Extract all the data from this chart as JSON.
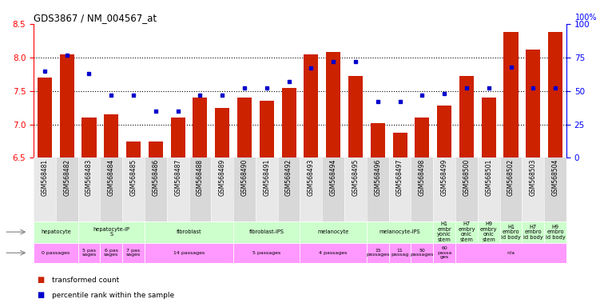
{
  "title": "GDS3867 / NM_004567_at",
  "gsm_labels": [
    "GSM568481",
    "GSM568482",
    "GSM568483",
    "GSM568484",
    "GSM568485",
    "GSM568486",
    "GSM568487",
    "GSM568488",
    "GSM568489",
    "GSM568490",
    "GSM568491",
    "GSM568492",
    "GSM568493",
    "GSM568494",
    "GSM568495",
    "GSM568496",
    "GSM568497",
    "GSM568498",
    "GSM568499",
    "GSM568500",
    "GSM568501",
    "GSM568502",
    "GSM568503",
    "GSM568504"
  ],
  "bar_values": [
    7.7,
    8.05,
    7.1,
    7.15,
    6.75,
    6.75,
    7.1,
    7.4,
    7.25,
    7.4,
    7.35,
    7.55,
    8.05,
    8.08,
    7.72,
    7.02,
    6.88,
    7.1,
    7.28,
    7.72,
    7.4,
    8.38,
    8.12,
    8.38
  ],
  "percentile_values": [
    65.0,
    77.0,
    63.0,
    47.0,
    47.0,
    35.0,
    35.0,
    47.0,
    47.0,
    52.0,
    52.0,
    57.0,
    67.0,
    72.0,
    72.0,
    42.0,
    42.0,
    47.0,
    48.0,
    52.0,
    52.0,
    68.0,
    52.0,
    52.0
  ],
  "ylim_left": [
    6.5,
    8.5
  ],
  "ylim_right": [
    0,
    100
  ],
  "yticks_left": [
    6.5,
    7.0,
    7.5,
    8.0,
    8.5
  ],
  "yticks_right": [
    0,
    25,
    50,
    75,
    100
  ],
  "bar_color": "#CC2200",
  "dot_color": "#0000CC",
  "bg_color": "#FFFFFF",
  "cell_type_groups": [
    {
      "label": "hepatocyte",
      "start": 0,
      "end": 2
    },
    {
      "label": "hepatocyte-iP\nS",
      "start": 2,
      "end": 5
    },
    {
      "label": "fibroblast",
      "start": 5,
      "end": 9
    },
    {
      "label": "fibroblast-IPS",
      "start": 9,
      "end": 12
    },
    {
      "label": "melanocyte",
      "start": 12,
      "end": 15
    },
    {
      "label": "melanocyte-IPS",
      "start": 15,
      "end": 18
    },
    {
      "label": "H1\nembr\nyonic\nstem",
      "start": 18,
      "end": 19
    },
    {
      "label": "H7\nembry\nonic\nstem",
      "start": 19,
      "end": 20
    },
    {
      "label": "H9\nembry\nonic\nstem",
      "start": 20,
      "end": 21
    },
    {
      "label": "H1\nembro\nid body",
      "start": 21,
      "end": 22
    },
    {
      "label": "H7\nembro\nid body",
      "start": 22,
      "end": 23
    },
    {
      "label": "H9\nembro\nid body",
      "start": 23,
      "end": 24
    }
  ],
  "other_groups": [
    {
      "label": "0 passages",
      "start": 0,
      "end": 2
    },
    {
      "label": "5 pas\nsages",
      "start": 2,
      "end": 3
    },
    {
      "label": "6 pas\nsages",
      "start": 3,
      "end": 4
    },
    {
      "label": "7 pas\nsages",
      "start": 4,
      "end": 5
    },
    {
      "label": "14 passages",
      "start": 5,
      "end": 9
    },
    {
      "label": "5 passages",
      "start": 9,
      "end": 12
    },
    {
      "label": "4 passages",
      "start": 12,
      "end": 15
    },
    {
      "label": "15\npassages",
      "start": 15,
      "end": 16
    },
    {
      "label": "11\npassag",
      "start": 16,
      "end": 17
    },
    {
      "label": "50\npassages",
      "start": 17,
      "end": 18
    },
    {
      "label": "60\npassa\nges",
      "start": 18,
      "end": 19
    },
    {
      "label": "n/a",
      "start": 19,
      "end": 24
    }
  ],
  "legend_items": [
    {
      "color": "#CC2200",
      "label": "transformed count"
    },
    {
      "color": "#0000CC",
      "label": "percentile rank within the sample"
    }
  ]
}
